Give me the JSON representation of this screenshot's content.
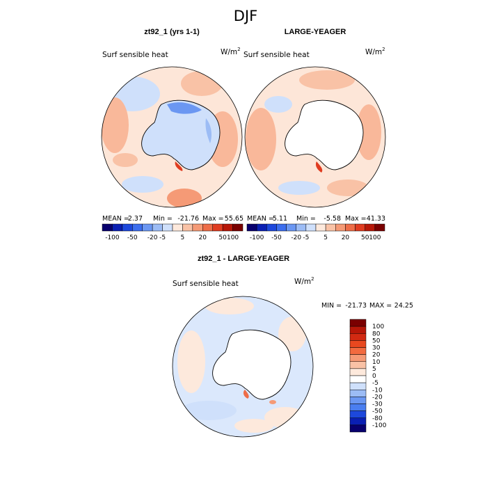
{
  "page_title": "DJF",
  "colors": {
    "levels_top": [
      "#08006e",
      "#0a1fb3",
      "#1d48dc",
      "#3c6eee",
      "#6b97f2",
      "#9cbcf5",
      "#cfe0fb",
      "#fde9dc",
      "#f9c2a6",
      "#f59a76",
      "#ee6d48",
      "#e03c20",
      "#b71708",
      "#7a0000"
    ],
    "levels_bottom": [
      "#08006e",
      "#0a1fb3",
      "#1d48dc",
      "#3c6eee",
      "#6b97f2",
      "#9cbcf5",
      "#cfe0fb",
      "#fde9dc",
      "#f9c2a6",
      "#f59a76",
      "#ee6d48",
      "#e03c20",
      "#b71708",
      "#7a0000"
    ]
  },
  "panels": [
    {
      "title": "zt92_1 (yrs 1-1)",
      "field_label": "Surf sensible heat",
      "units_base": "W/m",
      "units_exp": "2",
      "stats": {
        "mean": "2.37",
        "min": "-21.76",
        "max": "55.65"
      }
    },
    {
      "title": "LARGE-YEAGER",
      "field_label": "Surf sensible heat",
      "units_base": "W/m",
      "units_exp": "2",
      "stats": {
        "mean": "5.11",
        "min": "-5.58",
        "max": "41.33"
      }
    },
    {
      "title": "zt92_1 - LARGE-YEAGER",
      "field_label": "Surf sensible heat",
      "units_base": "W/m",
      "units_exp": "2",
      "stats": {
        "min": "-21.73",
        "max": "24.25"
      }
    }
  ],
  "stat_labels": {
    "mean": "MEAN =",
    "min": "Min =",
    "max": "Max =",
    "MIN": "MIN =",
    "MAX": "MAX ="
  },
  "chart_data": [
    {
      "type": "heatmap",
      "title": "zt92_1 (yrs 1-1)",
      "projection": "south polar stereographic",
      "variable": "Surf sensible heat",
      "units": "W/m^2",
      "stats": {
        "mean": 2.37,
        "min": -21.76,
        "max": 55.65
      },
      "colorbar_ticks": [
        "-100",
        "-50",
        "-20",
        "-5",
        "5",
        "20",
        "50",
        "100"
      ],
      "colorbar_orientation": "horizontal"
    },
    {
      "type": "heatmap",
      "title": "LARGE-YEAGER",
      "projection": "south polar stereographic",
      "variable": "Surf sensible heat",
      "units": "W/m^2",
      "stats": {
        "mean": 5.11,
        "min": -5.58,
        "max": 41.33
      },
      "colorbar_ticks": [
        "-100",
        "-50",
        "-20",
        "-5",
        "5",
        "20",
        "50",
        "100"
      ],
      "colorbar_orientation": "horizontal"
    },
    {
      "type": "heatmap",
      "title": "zt92_1 - LARGE-YEAGER",
      "projection": "south polar stereographic",
      "variable": "Surf sensible heat",
      "units": "W/m^2",
      "stats": {
        "min": -21.73,
        "max": 24.25
      },
      "colorbar_ticks": [
        "100",
        "80",
        "50",
        "30",
        "20",
        "10",
        "5",
        "0",
        "-5",
        "-10",
        "-20",
        "-30",
        "-50",
        "-80",
        "-100"
      ],
      "colorbar_orientation": "vertical"
    }
  ]
}
